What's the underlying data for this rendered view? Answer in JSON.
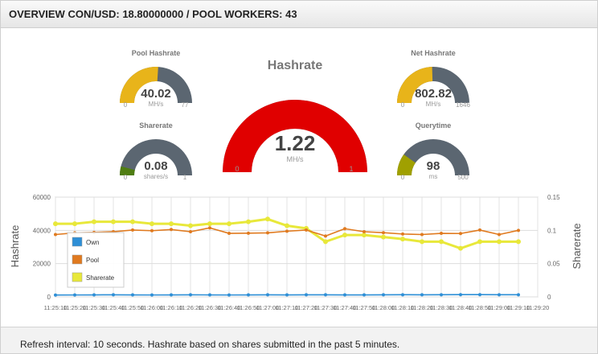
{
  "header": {
    "title": "OVERVIEW CON/USD: 18.80000000 / POOL WORKERS: 43"
  },
  "footer": {
    "text": "Refresh interval: 10 seconds. Hashrate based on shares submitted in the past 5 minutes."
  },
  "gauges": {
    "pool_hashrate": {
      "title": "Pool Hashrate",
      "value": "40.02",
      "unit": "MH/s",
      "min": "0",
      "max": "77",
      "fraction": 0.52,
      "color": "#e8b41a"
    },
    "net_hashrate": {
      "title": "Net Hashrate",
      "value": "802.82",
      "unit": "MH/s",
      "min": "0",
      "max": "1646",
      "fraction": 0.49,
      "color": "#e8b41a"
    },
    "sharerate": {
      "title": "Sharerate",
      "value": "0.08",
      "unit": "shares/s",
      "min": "0",
      "max": "1",
      "fraction": 0.08,
      "color": "#4f7d12"
    },
    "querytime": {
      "title": "Querytime",
      "value": "98",
      "unit": "ms",
      "min": "0",
      "max": "500",
      "fraction": 0.196,
      "color": "#a0a000"
    },
    "hashrate": {
      "title": "Hashrate",
      "value": "1.22",
      "unit": "MH/s",
      "min": "0",
      "max": "1",
      "fraction": 1.0,
      "color": "#e00000"
    }
  },
  "chart_data": {
    "type": "line",
    "x": [
      "11:25:10",
      "11:25:20",
      "11:25:30",
      "11:25:40",
      "11:25:50",
      "11:26:00",
      "11:26:10",
      "11:26:20",
      "11:26:30",
      "11:26:40",
      "11:26:50",
      "11:27:00",
      "11:27:10",
      "11:27:20",
      "11:27:30",
      "11:27:40",
      "11:27:50",
      "11:28:00",
      "11:28:10",
      "11:28:20",
      "11:28:30",
      "11:28:40",
      "11:28:50",
      "11:29:00",
      "11:29:10"
    ],
    "x_ticks": [
      "11:25:10",
      "11:25:20",
      "11:25:30",
      "11:25:40",
      "11:25:50",
      "11:26:00",
      "11:26:10",
      "11:26:20",
      "11:26:30",
      "11:26:40",
      "11:26:50",
      "11:27:00",
      "11:27:10",
      "11:27:20",
      "11:27:30",
      "11:27:40",
      "11:27:50",
      "11:28:00",
      "11:28:10",
      "11:28:20",
      "11:28:30",
      "11:28:40",
      "11:28:50",
      "11:29:00",
      "11:29:10",
      "11:29:20"
    ],
    "x_tick_labels": [
      "11:25:10",
      "11:25:20",
      "11:25:30",
      "11:25:40",
      "11:25:50",
      "11:26:00",
      "11:26:10",
      "11:26:20",
      "11:26:30",
      "11:26:40",
      "11:26:50",
      "11:27:00",
      "11:27:10",
      "11:27:20",
      "11:27:30",
      "11:27:40",
      "11:27:50",
      "11:28:00",
      "11:28:10",
      "11:28:20",
      "11:28:30",
      "11:28:40",
      "11:28:50",
      "11:29:00",
      "11:29:10",
      "11:29:20"
    ],
    "ylabel_left": "Hashrate",
    "ylabel_right": "Sharerate",
    "ylim_left": [
      0,
      60000
    ],
    "ylim_right": [
      0,
      0.15
    ],
    "yticks_left": [
      "0",
      "20000",
      "40000",
      "60000"
    ],
    "yticks_right": [
      "0",
      "0.05",
      "0.1",
      "0.15"
    ],
    "legend_position": "left",
    "series": [
      {
        "name": "Own",
        "axis": "left",
        "color": "#2e8fd6",
        "values": [
          1100,
          1150,
          1200,
          1250,
          1200,
          1150,
          1200,
          1250,
          1200,
          1150,
          1200,
          1250,
          1200,
          1250,
          1250,
          1200,
          1200,
          1250,
          1300,
          1250,
          1300,
          1350,
          1350,
          1300,
          1300
        ]
      },
      {
        "name": "Pool",
        "axis": "left",
        "color": "#e07a1f",
        "values": [
          37500,
          38500,
          38800,
          39200,
          40200,
          39800,
          40500,
          39200,
          41500,
          38200,
          38300,
          38500,
          39500,
          40200,
          36600,
          41000,
          39200,
          38600,
          37800,
          37500,
          38200,
          38100,
          40200,
          37500,
          40000
        ]
      },
      {
        "name": "Sharerate",
        "axis": "right",
        "color": "#e8e83a",
        "values": [
          0.11,
          0.11,
          0.113,
          0.113,
          0.113,
          0.11,
          0.11,
          0.107,
          0.11,
          0.11,
          0.113,
          0.117,
          0.107,
          0.103,
          0.083,
          0.093,
          0.093,
          0.09,
          0.087,
          0.083,
          0.083,
          0.073,
          0.083,
          0.083,
          0.083
        ]
      }
    ]
  }
}
